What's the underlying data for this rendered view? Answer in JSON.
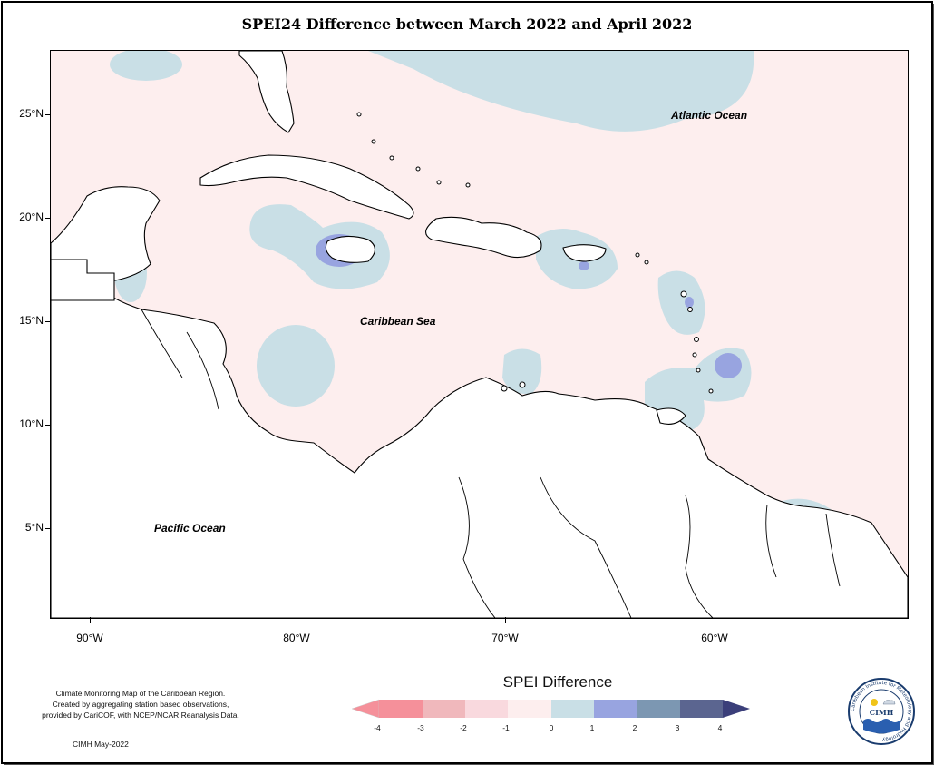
{
  "title": "SPEI24 Difference between March 2022 and April 2022",
  "axes": {
    "y_labels": [
      "25°N",
      "20°N",
      "15°N",
      "10°N",
      "5°N"
    ],
    "x_labels": [
      "90°W",
      "80°W",
      "70°W",
      "60°W"
    ]
  },
  "ocean_labels": {
    "atlantic": "Atlantic Ocean",
    "caribbean": "Caribbean Sea",
    "pacific": "Pacific Ocean"
  },
  "legend": {
    "title": "SPEI Difference",
    "ticks": [
      "-4",
      "-3",
      "-2",
      "-1",
      "0",
      "1",
      "2",
      "3",
      "4"
    ],
    "colors": [
      "#f5909a",
      "#f0b8bc",
      "#f9d9de",
      "#fdeeee",
      "#c9dfe6",
      "#98a4e0",
      "#7c97b2",
      "#5b6590"
    ]
  },
  "credit": {
    "lines": [
      "Climate Monitoring Map of the Caribbean Region.",
      "Created by aggregating station based observations,",
      "provided by CariCOF, with NCEP/NCAR Reanalysis Data."
    ],
    "date": "CIMH May-2022"
  },
  "logo": {
    "text": "CIMH",
    "ring_text": "Caribbean Institute for Meteorology and Hydrology"
  }
}
